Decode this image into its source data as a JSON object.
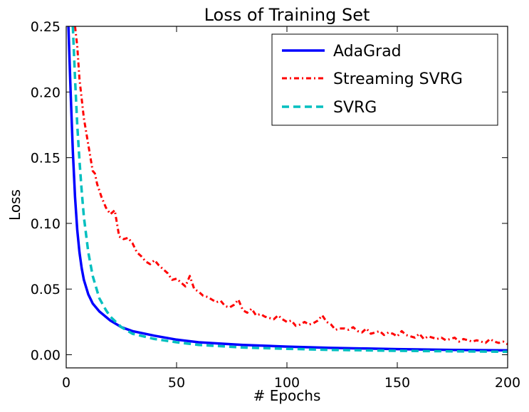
{
  "chart_data": {
    "type": "line",
    "title": "Loss of Training Set",
    "xlabel": "# Epochs",
    "ylabel": "Loss",
    "xlim": [
      0,
      200
    ],
    "ylim": [
      -0.01,
      0.25
    ],
    "xticks": [
      0,
      50,
      100,
      150,
      200
    ],
    "xtick_labels": [
      "0",
      "50",
      "100",
      "150",
      "200"
    ],
    "yticks": [
      0.0,
      0.05,
      0.1,
      0.15,
      0.2,
      0.25
    ],
    "ytick_labels": [
      "0.00",
      "0.05",
      "0.10",
      "0.15",
      "0.20",
      "0.25"
    ],
    "grid": false,
    "legend_position": "top-right",
    "series": [
      {
        "name": "AdaGrad",
        "color": "#0000ff",
        "line_style": "solid",
        "x": [
          1,
          2,
          3,
          4,
          5,
          6,
          7,
          8,
          10,
          12,
          15,
          20,
          25,
          30,
          40,
          50,
          60,
          80,
          100,
          120,
          150,
          175,
          200
        ],
        "y": [
          0.25,
          0.2,
          0.155,
          0.12,
          0.095,
          0.078,
          0.066,
          0.057,
          0.046,
          0.039,
          0.033,
          0.026,
          0.021,
          0.018,
          0.0145,
          0.0115,
          0.0095,
          0.0075,
          0.0062,
          0.0052,
          0.0043,
          0.0037,
          0.0033
        ]
      },
      {
        "name": "Streaming SVRG",
        "color": "#ff0000",
        "line_style": "dash-dot",
        "x": [
          4,
          5,
          6,
          7,
          8,
          9,
          10,
          12,
          13,
          14,
          16,
          18,
          20,
          22,
          24,
          26,
          28,
          30,
          32,
          34,
          36,
          38,
          40,
          42,
          44,
          46,
          48,
          50,
          52,
          54,
          56,
          58,
          60,
          62,
          64,
          66,
          68,
          70,
          72,
          74,
          76,
          78,
          80,
          82,
          84,
          86,
          88,
          90,
          92,
          94,
          96,
          98,
          100,
          102,
          104,
          106,
          108,
          110,
          112,
          114,
          116,
          118,
          120,
          122,
          124,
          126,
          128,
          130,
          132,
          134,
          136,
          138,
          140,
          142,
          144,
          146,
          148,
          150,
          152,
          154,
          156,
          158,
          160,
          162,
          164,
          166,
          168,
          170,
          172,
          174,
          176,
          178,
          180,
          182,
          184,
          186,
          188,
          190,
          192,
          194,
          196,
          198,
          200
        ],
        "y": [
          0.25,
          0.235,
          0.21,
          0.195,
          0.18,
          0.17,
          0.16,
          0.14,
          0.138,
          0.13,
          0.12,
          0.112,
          0.107,
          0.11,
          0.09,
          0.088,
          0.089,
          0.085,
          0.078,
          0.075,
          0.071,
          0.069,
          0.072,
          0.068,
          0.065,
          0.062,
          0.057,
          0.058,
          0.055,
          0.052,
          0.06,
          0.05,
          0.048,
          0.045,
          0.044,
          0.042,
          0.04,
          0.041,
          0.037,
          0.036,
          0.038,
          0.042,
          0.034,
          0.032,
          0.035,
          0.03,
          0.031,
          0.029,
          0.028,
          0.027,
          0.03,
          0.027,
          0.025,
          0.026,
          0.022,
          0.023,
          0.025,
          0.023,
          0.024,
          0.026,
          0.03,
          0.025,
          0.023,
          0.019,
          0.02,
          0.02,
          0.019,
          0.021,
          0.018,
          0.017,
          0.02,
          0.016,
          0.017,
          0.018,
          0.015,
          0.017,
          0.016,
          0.014,
          0.018,
          0.015,
          0.014,
          0.013,
          0.016,
          0.012,
          0.014,
          0.013,
          0.012,
          0.013,
          0.011,
          0.012,
          0.013,
          0.01,
          0.012,
          0.011,
          0.01,
          0.011,
          0.01,
          0.009,
          0.012,
          0.01,
          0.009,
          0.01,
          0.008
        ]
      },
      {
        "name": "SVRG",
        "color": "#00bfbf",
        "line_style": "dashed",
        "x": [
          3,
          4,
          5,
          6,
          7,
          8,
          10,
          12,
          15,
          18,
          20,
          25,
          30,
          40,
          50,
          60,
          80,
          100,
          120,
          150,
          175,
          200
        ],
        "y": [
          0.25,
          0.21,
          0.175,
          0.148,
          0.125,
          0.105,
          0.078,
          0.06,
          0.043,
          0.034,
          0.029,
          0.021,
          0.016,
          0.012,
          0.0095,
          0.0075,
          0.0055,
          0.0045,
          0.0037,
          0.003,
          0.0026,
          0.0023
        ]
      }
    ]
  }
}
